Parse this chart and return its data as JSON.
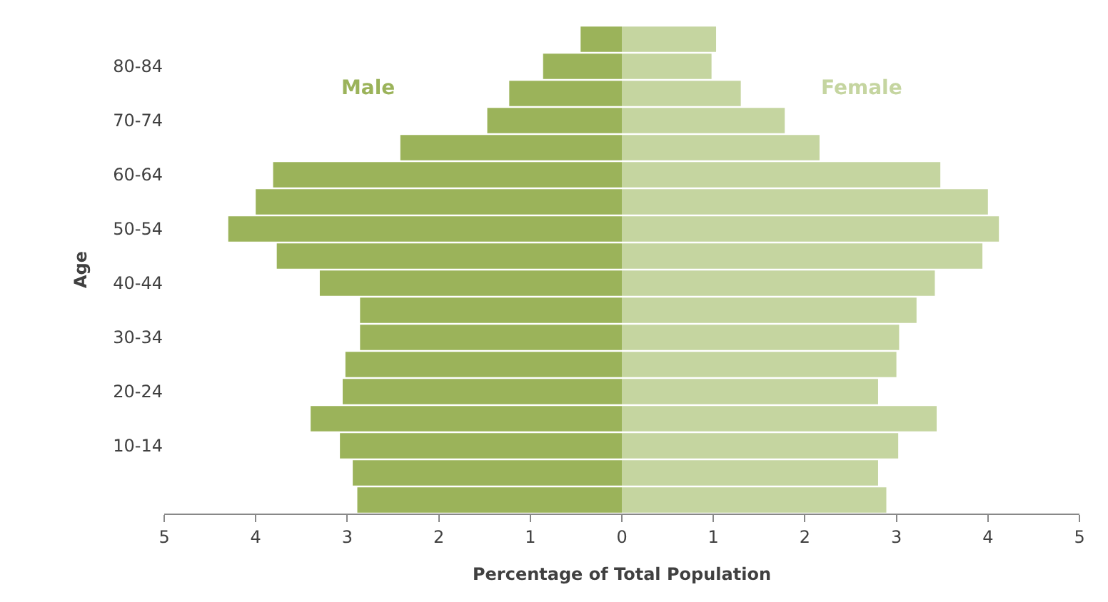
{
  "chart_data": {
    "type": "bar",
    "orientation": "horizontal",
    "stacked": true,
    "xlabel": "Percentage of Total Population",
    "ylabel": "Age",
    "categories": [
      null,
      "80-84",
      null,
      "70-74",
      null,
      "60-64",
      null,
      "50-54",
      null,
      "40-44",
      null,
      "30-34",
      null,
      "20-24",
      null,
      "10-14",
      null,
      null
    ],
    "series": [
      {
        "name": "Male",
        "color": "#9bb35a",
        "values": [
          -0.45,
          -0.86,
          -1.23,
          -1.47,
          -2.42,
          -3.81,
          -4.0,
          -4.3,
          -3.77,
          -3.3,
          -2.86,
          -2.86,
          -3.02,
          -3.05,
          -3.4,
          -3.08,
          -2.94,
          -2.89
        ]
      },
      {
        "name": "Female",
        "color": "#c5d5a0",
        "values": [
          1.03,
          0.98,
          1.3,
          1.78,
          2.16,
          3.48,
          4.0,
          4.12,
          3.94,
          3.42,
          3.22,
          3.03,
          3.0,
          2.8,
          3.44,
          3.02,
          2.8,
          2.89
        ]
      }
    ],
    "xlim": [
      -5,
      5
    ],
    "xticks": [
      {
        "value": -5,
        "label": "5"
      },
      {
        "value": -4,
        "label": "4"
      },
      {
        "value": -3,
        "label": "3"
      },
      {
        "value": -2,
        "label": "2"
      },
      {
        "value": -1,
        "label": "1"
      },
      0,
      1,
      2,
      3,
      4,
      5
    ],
    "legend": false
  }
}
